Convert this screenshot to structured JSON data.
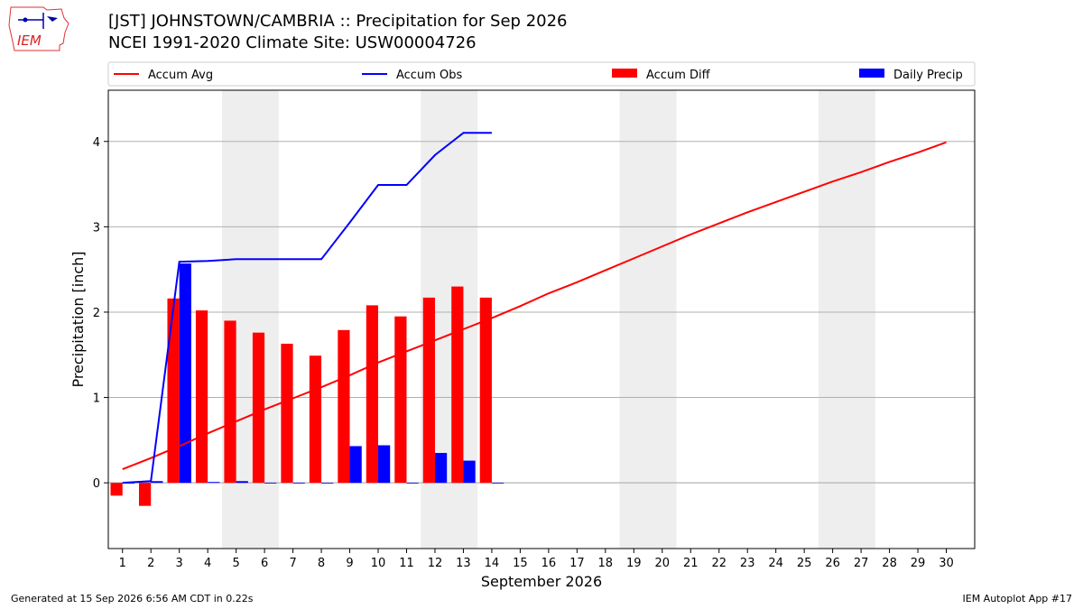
{
  "header": {
    "title_line1": "[JST] JOHNSTOWN/CAMBRIA :: Precipitation for Sep 2026",
    "title_line2": "NCEI 1991-2020 Climate Site: USW00004726",
    "logo_text": "IEM"
  },
  "footer": {
    "generated": "Generated at 15 Sep 2026 6:56 AM CDT in 0.22s",
    "app": "IEM Autoplot App #17"
  },
  "chart_data": {
    "type": "bar",
    "xlabel": "September 2026",
    "ylabel": "Precipitation [inch]",
    "xlim": [
      0.5,
      31.0
    ],
    "ylim": [
      -0.77,
      4.6
    ],
    "yticks": [
      0,
      1,
      2,
      3,
      4
    ],
    "grid": "y",
    "legend_placement": "top",
    "x_tick_labels": [
      "1",
      "2",
      "3",
      "4",
      "5",
      "6",
      "7",
      "8",
      "9",
      "10",
      "11",
      "12",
      "13",
      "14",
      "15",
      "16",
      "17",
      "18",
      "19",
      "20",
      "21",
      "22",
      "23",
      "24",
      "25",
      "26",
      "27",
      "28",
      "29",
      "30"
    ],
    "weekend_shading": [
      [
        5,
        6
      ],
      [
        12,
        13
      ],
      [
        19,
        20
      ],
      [
        26,
        27
      ]
    ],
    "colors": {
      "accum_avg": "#ff0000",
      "accum_obs": "#0000ff",
      "accum_diff": "#ff0000",
      "daily_precip": "#0000ff",
      "weekend": "#eeeeee",
      "grid": "#b0b0b0"
    },
    "series": [
      {
        "name": "Accum Avg",
        "kind": "line",
        "x": [
          1,
          2,
          3,
          4,
          5,
          6,
          7,
          8,
          9,
          10,
          11,
          12,
          13,
          14,
          15,
          16,
          17,
          18,
          19,
          20,
          21,
          22,
          23,
          24,
          25,
          26,
          27,
          28,
          29,
          30
        ],
        "values": [
          0.16,
          0.29,
          0.43,
          0.58,
          0.72,
          0.86,
          0.99,
          1.12,
          1.26,
          1.41,
          1.54,
          1.67,
          1.8,
          1.93,
          2.07,
          2.22,
          2.35,
          2.49,
          2.63,
          2.77,
          2.91,
          3.04,
          3.17,
          3.29,
          3.41,
          3.53,
          3.64,
          3.76,
          3.87,
          3.99
        ]
      },
      {
        "name": "Accum Obs",
        "kind": "line",
        "x": [
          1,
          2,
          3,
          4,
          5,
          6,
          7,
          8,
          9,
          10,
          11,
          12,
          13,
          14
        ],
        "values": [
          0.0,
          0.02,
          2.59,
          2.6,
          2.62,
          2.62,
          2.62,
          2.62,
          3.05,
          3.49,
          3.49,
          3.84,
          4.1,
          4.1
        ]
      },
      {
        "name": "Accum Diff",
        "kind": "bar",
        "x": [
          1,
          2,
          3,
          4,
          5,
          6,
          7,
          8,
          9,
          10,
          11,
          12,
          13,
          14
        ],
        "values": [
          -0.15,
          -0.27,
          2.16,
          2.02,
          1.9,
          1.76,
          1.63,
          1.49,
          1.79,
          2.08,
          1.95,
          2.17,
          2.3,
          2.17
        ]
      },
      {
        "name": "Daily Precip",
        "kind": "bar",
        "x": [
          1,
          2,
          3,
          4,
          5,
          6,
          7,
          8,
          9,
          10,
          11,
          12,
          13,
          14
        ],
        "values": [
          0.0,
          0.02,
          2.57,
          0.01,
          0.02,
          0.0,
          0.0,
          0.0,
          0.43,
          0.44,
          0.0,
          0.35,
          0.26,
          0.0
        ]
      }
    ]
  }
}
